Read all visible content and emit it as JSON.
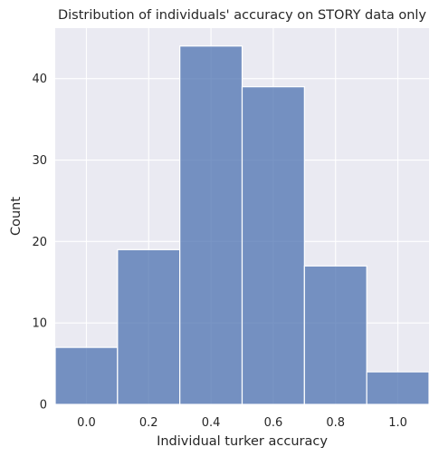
{
  "chart_data": {
    "type": "bar",
    "title": "Distribution of individuals' accuracy on STORY data only",
    "xlabel": "Individual turker accuracy",
    "ylabel": "Count",
    "bins": [
      {
        "start": -0.1,
        "end": 0.1,
        "count": 7
      },
      {
        "start": 0.1,
        "end": 0.3,
        "count": 19
      },
      {
        "start": 0.3,
        "end": 0.5,
        "count": 44
      },
      {
        "start": 0.5,
        "end": 0.7,
        "count": 39
      },
      {
        "start": 0.7,
        "end": 0.9,
        "count": 17
      },
      {
        "start": 0.9,
        "end": 1.1,
        "count": 4
      }
    ],
    "xlim": [
      -0.1,
      1.1
    ],
    "ylim": [
      0,
      46.2
    ],
    "xticks": [
      {
        "value": 0.0,
        "label": "0.0"
      },
      {
        "value": 0.2,
        "label": "0.2"
      },
      {
        "value": 0.4,
        "label": "0.4"
      },
      {
        "value": 0.6,
        "label": "0.6"
      },
      {
        "value": 0.8,
        "label": "0.8"
      },
      {
        "value": 1.0,
        "label": "1.0"
      }
    ],
    "yticks": [
      {
        "value": 0,
        "label": "0"
      },
      {
        "value": 10,
        "label": "10"
      },
      {
        "value": 20,
        "label": "20"
      },
      {
        "value": 30,
        "label": "30"
      },
      {
        "value": 40,
        "label": "40"
      }
    ],
    "grid": true,
    "colors": {
      "bar": "#4c72b0",
      "background": "#eaeaf2",
      "grid": "#ffffff"
    }
  }
}
